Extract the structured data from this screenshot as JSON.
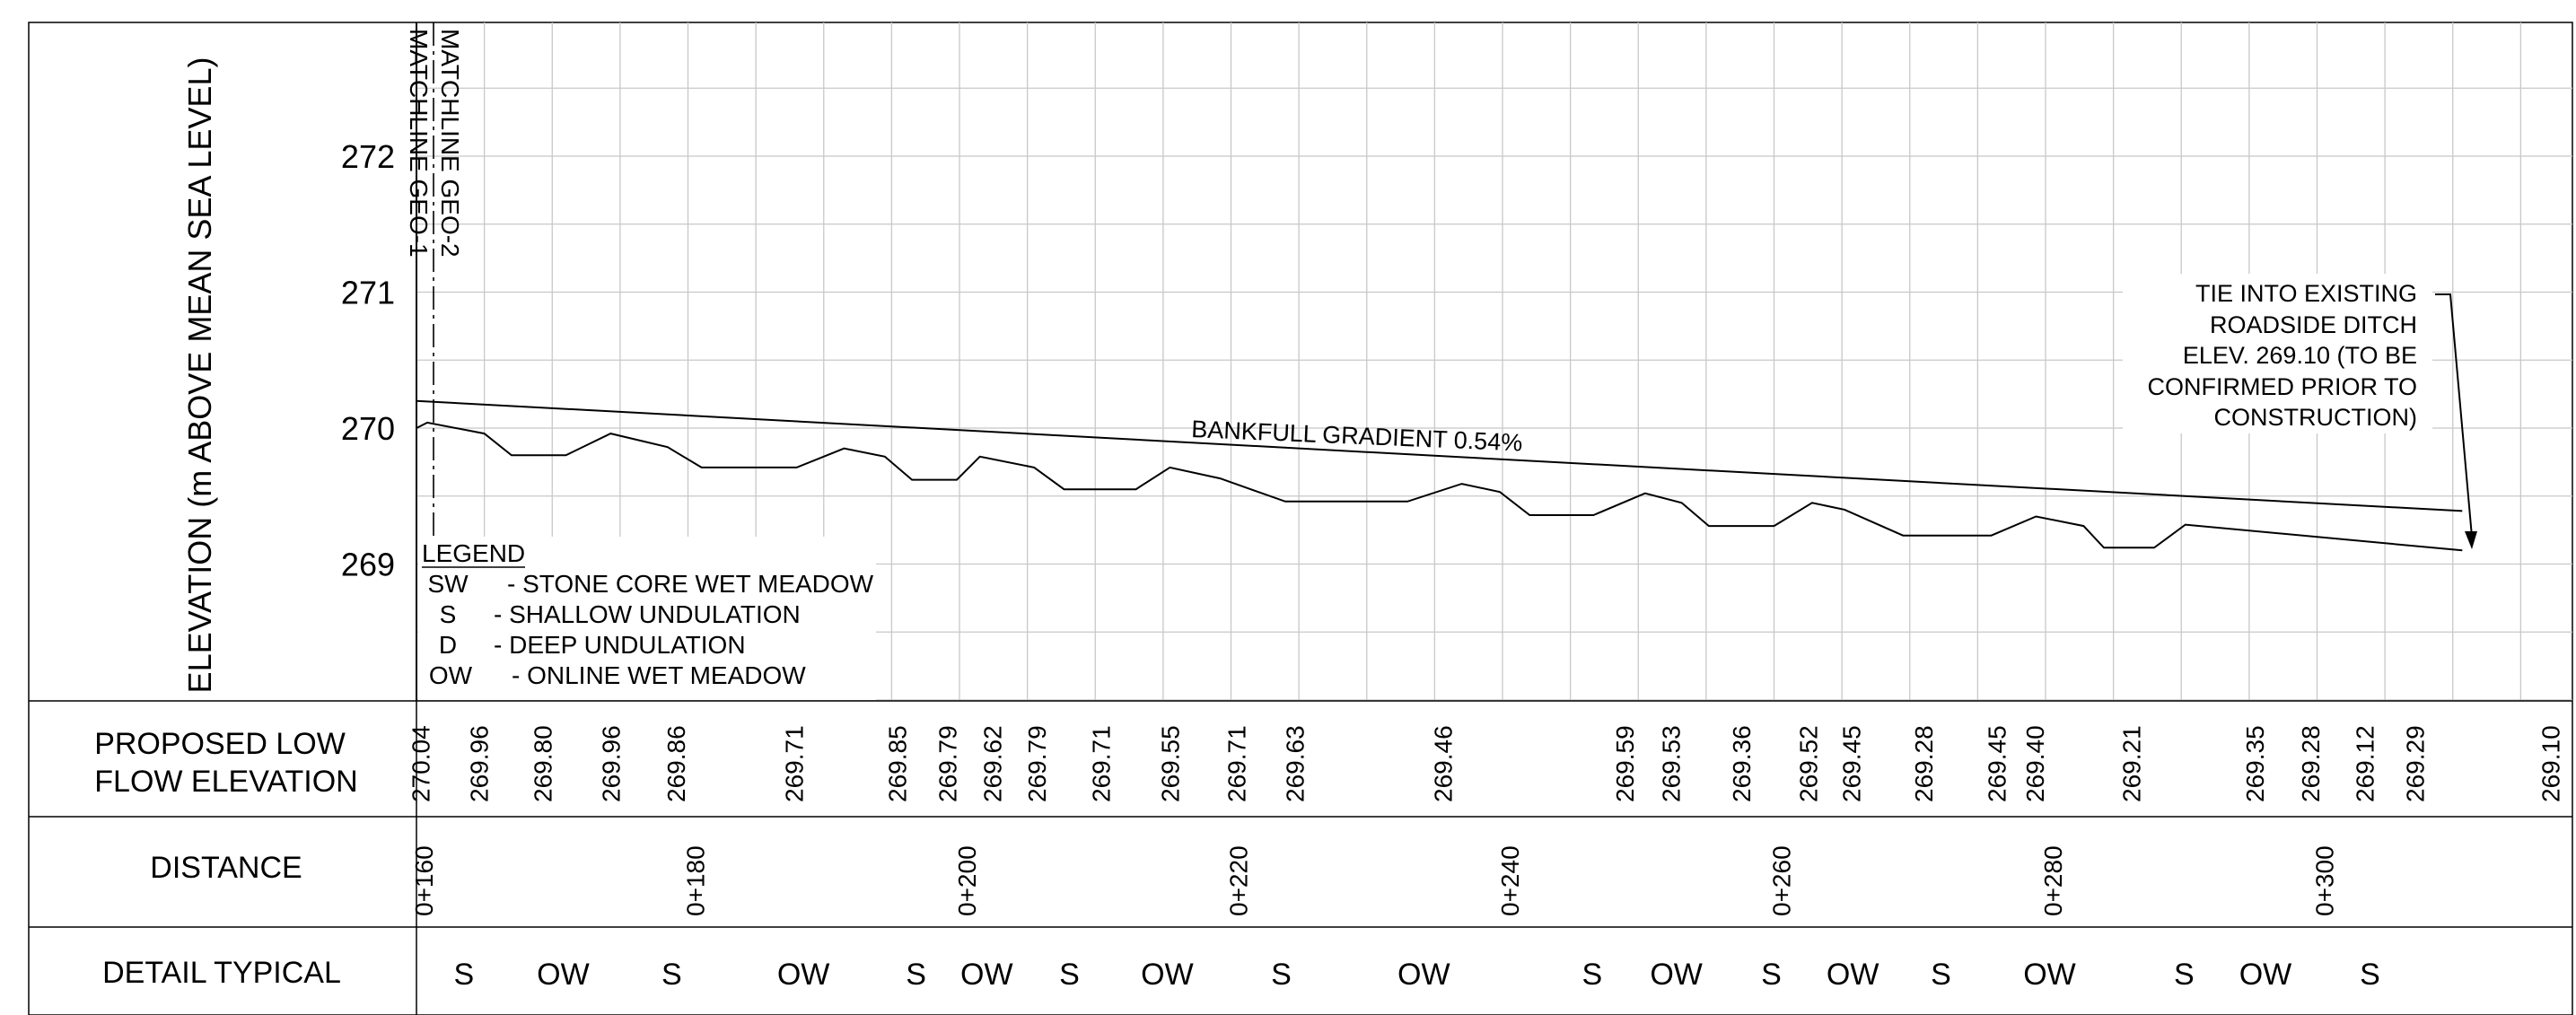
{
  "axis": {
    "ylabel": "ELEVATION (m ABOVE MEAN SEA LEVEL)",
    "yticks": [
      {
        "label": "272",
        "value": 272
      },
      {
        "label": "271",
        "value": 271
      },
      {
        "label": "270",
        "value": 270
      },
      {
        "label": "269",
        "value": 269
      }
    ]
  },
  "matchlines": [
    "MATCHLINE GEO-1",
    "MATCHLINE GEO-2"
  ],
  "gradient_label": "BANKFULL GRADIENT 0.54%",
  "tie_note": [
    "TIE INTO EXISTING",
    "ROADSIDE DITCH",
    "ELEV. 269.10 (TO BE",
    "CONFIRMED PRIOR TO",
    "CONSTRUCTION)"
  ],
  "legend": {
    "title": "LEGEND",
    "items": [
      {
        "code": "SW",
        "desc": "- STONE CORE WET MEADOW"
      },
      {
        "code": "S",
        "desc": "- SHALLOW UNDULATION"
      },
      {
        "code": "D",
        "desc": "- DEEP UNDULATION"
      },
      {
        "code": "OW",
        "desc": "- ONLINE WET MEADOW"
      }
    ]
  },
  "rows": {
    "elevation_label": [
      "PROPOSED LOW",
      "FLOW ELEVATION"
    ],
    "distance_label": "DISTANCE",
    "detail_label": "DETAIL TYPICAL"
  },
  "chart_data": {
    "type": "line",
    "x_unit": "chainage (m)",
    "ylim": [
      268.0,
      273.0
    ],
    "xlim": [
      160,
      322
    ],
    "series": [
      {
        "values": [
          [
            160,
            270.2
          ],
          [
            310.7,
            269.39
          ]
        ]
      },
      {
        "values": [
          [
            160,
            270.0
          ],
          [
            160.8,
            270.04
          ],
          [
            165,
            269.96
          ],
          [
            167,
            269.8
          ],
          [
            171,
            269.8
          ],
          [
            174.3,
            269.96
          ],
          [
            178.5,
            269.86
          ],
          [
            181,
            269.71
          ],
          [
            188,
            269.71
          ],
          [
            191.5,
            269.85
          ],
          [
            194.5,
            269.79
          ],
          [
            196.5,
            269.62
          ],
          [
            199.8,
            269.62
          ],
          [
            201.5,
            269.79
          ],
          [
            205.5,
            269.71
          ],
          [
            207.7,
            269.55
          ],
          [
            213,
            269.55
          ],
          [
            215.5,
            269.71
          ],
          [
            219.2,
            269.63
          ],
          [
            224,
            269.46
          ],
          [
            233,
            269.46
          ],
          [
            237,
            269.59
          ],
          [
            239.8,
            269.53
          ],
          [
            242,
            269.36
          ],
          [
            246.7,
            269.36
          ],
          [
            250.5,
            269.52
          ],
          [
            253.2,
            269.45
          ],
          [
            255.2,
            269.28
          ],
          [
            260,
            269.28
          ],
          [
            262.8,
            269.45
          ],
          [
            265.2,
            269.4
          ],
          [
            269.5,
            269.21
          ],
          [
            276,
            269.21
          ],
          [
            279.3,
            269.35
          ],
          [
            282.8,
            269.28
          ],
          [
            284.3,
            269.12
          ],
          [
            288,
            269.12
          ],
          [
            290.3,
            269.29
          ],
          [
            310.7,
            269.1
          ]
        ]
      }
    ],
    "elevation_labels": [
      {
        "x": 160.3,
        "label": "270.04"
      },
      {
        "x": 164.6,
        "label": "269.96"
      },
      {
        "x": 169.3,
        "label": "269.80"
      },
      {
        "x": 174.3,
        "label": "269.96"
      },
      {
        "x": 179.1,
        "label": "269.86"
      },
      {
        "x": 187.8,
        "label": "269.71"
      },
      {
        "x": 195.4,
        "label": "269.85"
      },
      {
        "x": 199.1,
        "label": "269.79"
      },
      {
        "x": 202.4,
        "label": "269.62"
      },
      {
        "x": 205.7,
        "label": "269.79"
      },
      {
        "x": 210.4,
        "label": "269.71"
      },
      {
        "x": 215.5,
        "label": "269.55"
      },
      {
        "x": 220.4,
        "label": "269.71"
      },
      {
        "x": 224.7,
        "label": "269.63"
      },
      {
        "x": 235.6,
        "label": "269.46"
      },
      {
        "x": 249.0,
        "label": "269.59"
      },
      {
        "x": 252.4,
        "label": "269.53"
      },
      {
        "x": 257.6,
        "label": "269.36"
      },
      {
        "x": 262.5,
        "label": "269.52"
      },
      {
        "x": 265.7,
        "label": "269.45"
      },
      {
        "x": 271.0,
        "label": "269.28"
      },
      {
        "x": 276.4,
        "label": "269.45"
      },
      {
        "x": 279.2,
        "label": "269.40"
      },
      {
        "x": 286.3,
        "label": "269.21"
      },
      {
        "x": 295.4,
        "label": "269.35"
      },
      {
        "x": 299.5,
        "label": "269.28"
      },
      {
        "x": 303.5,
        "label": "269.12"
      },
      {
        "x": 307.2,
        "label": "269.29"
      },
      {
        "x": 317.2,
        "label": "269.10"
      }
    ],
    "distance_labels": [
      {
        "x": 160,
        "label": "0+160"
      },
      {
        "x": 180,
        "label": "0+180"
      },
      {
        "x": 200,
        "label": "0+200"
      },
      {
        "x": 220,
        "label": "0+220"
      },
      {
        "x": 240,
        "label": "0+240"
      },
      {
        "x": 260,
        "label": "0+260"
      },
      {
        "x": 280,
        "label": "0+280"
      },
      {
        "x": 300,
        "label": "0+300"
      }
    ],
    "detail_labels": [
      {
        "x": 163.5,
        "label": "S"
      },
      {
        "x": 170.8,
        "label": "OW"
      },
      {
        "x": 178.8,
        "label": "S"
      },
      {
        "x": 188.5,
        "label": "OW"
      },
      {
        "x": 196.8,
        "label": "S"
      },
      {
        "x": 202.0,
        "label": "OW"
      },
      {
        "x": 208.1,
        "label": "S"
      },
      {
        "x": 215.3,
        "label": "OW"
      },
      {
        "x": 223.7,
        "label": "S"
      },
      {
        "x": 234.2,
        "label": "OW"
      },
      {
        "x": 246.6,
        "label": "S"
      },
      {
        "x": 252.8,
        "label": "OW"
      },
      {
        "x": 259.8,
        "label": "S"
      },
      {
        "x": 265.8,
        "label": "OW"
      },
      {
        "x": 272.3,
        "label": "S"
      },
      {
        "x": 280.3,
        "label": "OW"
      },
      {
        "x": 290.2,
        "label": "S"
      },
      {
        "x": 296.2,
        "label": "OW"
      },
      {
        "x": 303.9,
        "label": "S"
      }
    ]
  }
}
